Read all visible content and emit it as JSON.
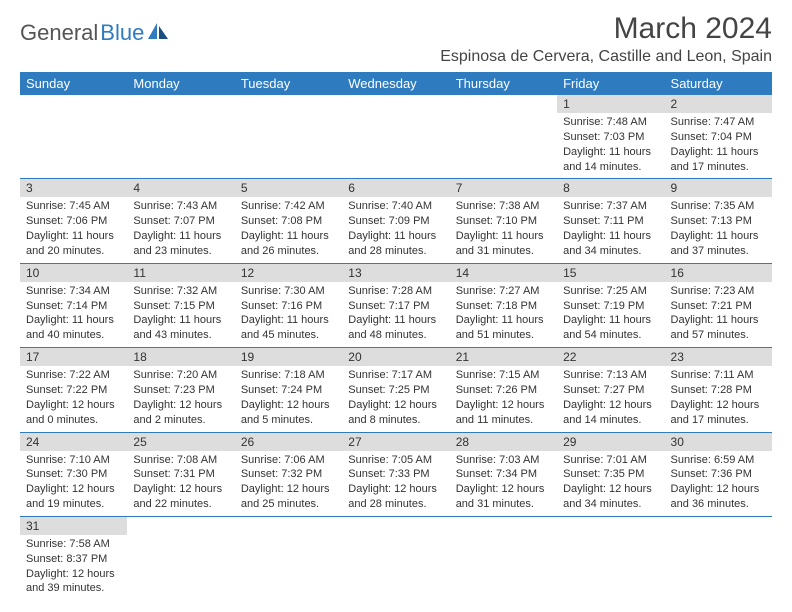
{
  "logo": {
    "general": "General",
    "blue": "Blue"
  },
  "title": "March 2024",
  "location": "Espinosa de Cervera, Castille and Leon, Spain",
  "weekdays": [
    "Sunday",
    "Monday",
    "Tuesday",
    "Wednesday",
    "Thursday",
    "Friday",
    "Saturday"
  ],
  "colors": {
    "header_bg": "#2f7bbf",
    "header_text": "#ffffff",
    "daynum_bg": "#dddddd",
    "border": "#2f7bbf",
    "text": "#333333"
  },
  "fonts": {
    "title_size_pt": 30,
    "location_size_pt": 16,
    "weekday_size_pt": 13,
    "daynum_size_pt": 12,
    "body_size_pt": 11
  },
  "weeks": [
    [
      null,
      null,
      null,
      null,
      null,
      {
        "n": "1",
        "sr": "Sunrise: 7:48 AM",
        "ss": "Sunset: 7:03 PM",
        "d1": "Daylight: 11 hours",
        "d2": "and 14 minutes."
      },
      {
        "n": "2",
        "sr": "Sunrise: 7:47 AM",
        "ss": "Sunset: 7:04 PM",
        "d1": "Daylight: 11 hours",
        "d2": "and 17 minutes."
      }
    ],
    [
      {
        "n": "3",
        "sr": "Sunrise: 7:45 AM",
        "ss": "Sunset: 7:06 PM",
        "d1": "Daylight: 11 hours",
        "d2": "and 20 minutes."
      },
      {
        "n": "4",
        "sr": "Sunrise: 7:43 AM",
        "ss": "Sunset: 7:07 PM",
        "d1": "Daylight: 11 hours",
        "d2": "and 23 minutes."
      },
      {
        "n": "5",
        "sr": "Sunrise: 7:42 AM",
        "ss": "Sunset: 7:08 PM",
        "d1": "Daylight: 11 hours",
        "d2": "and 26 minutes."
      },
      {
        "n": "6",
        "sr": "Sunrise: 7:40 AM",
        "ss": "Sunset: 7:09 PM",
        "d1": "Daylight: 11 hours",
        "d2": "and 28 minutes."
      },
      {
        "n": "7",
        "sr": "Sunrise: 7:38 AM",
        "ss": "Sunset: 7:10 PM",
        "d1": "Daylight: 11 hours",
        "d2": "and 31 minutes."
      },
      {
        "n": "8",
        "sr": "Sunrise: 7:37 AM",
        "ss": "Sunset: 7:11 PM",
        "d1": "Daylight: 11 hours",
        "d2": "and 34 minutes."
      },
      {
        "n": "9",
        "sr": "Sunrise: 7:35 AM",
        "ss": "Sunset: 7:13 PM",
        "d1": "Daylight: 11 hours",
        "d2": "and 37 minutes."
      }
    ],
    [
      {
        "n": "10",
        "sr": "Sunrise: 7:34 AM",
        "ss": "Sunset: 7:14 PM",
        "d1": "Daylight: 11 hours",
        "d2": "and 40 minutes."
      },
      {
        "n": "11",
        "sr": "Sunrise: 7:32 AM",
        "ss": "Sunset: 7:15 PM",
        "d1": "Daylight: 11 hours",
        "d2": "and 43 minutes."
      },
      {
        "n": "12",
        "sr": "Sunrise: 7:30 AM",
        "ss": "Sunset: 7:16 PM",
        "d1": "Daylight: 11 hours",
        "d2": "and 45 minutes."
      },
      {
        "n": "13",
        "sr": "Sunrise: 7:28 AM",
        "ss": "Sunset: 7:17 PM",
        "d1": "Daylight: 11 hours",
        "d2": "and 48 minutes."
      },
      {
        "n": "14",
        "sr": "Sunrise: 7:27 AM",
        "ss": "Sunset: 7:18 PM",
        "d1": "Daylight: 11 hours",
        "d2": "and 51 minutes."
      },
      {
        "n": "15",
        "sr": "Sunrise: 7:25 AM",
        "ss": "Sunset: 7:19 PM",
        "d1": "Daylight: 11 hours",
        "d2": "and 54 minutes."
      },
      {
        "n": "16",
        "sr": "Sunrise: 7:23 AM",
        "ss": "Sunset: 7:21 PM",
        "d1": "Daylight: 11 hours",
        "d2": "and 57 minutes."
      }
    ],
    [
      {
        "n": "17",
        "sr": "Sunrise: 7:22 AM",
        "ss": "Sunset: 7:22 PM",
        "d1": "Daylight: 12 hours",
        "d2": "and 0 minutes."
      },
      {
        "n": "18",
        "sr": "Sunrise: 7:20 AM",
        "ss": "Sunset: 7:23 PM",
        "d1": "Daylight: 12 hours",
        "d2": "and 2 minutes."
      },
      {
        "n": "19",
        "sr": "Sunrise: 7:18 AM",
        "ss": "Sunset: 7:24 PM",
        "d1": "Daylight: 12 hours",
        "d2": "and 5 minutes."
      },
      {
        "n": "20",
        "sr": "Sunrise: 7:17 AM",
        "ss": "Sunset: 7:25 PM",
        "d1": "Daylight: 12 hours",
        "d2": "and 8 minutes."
      },
      {
        "n": "21",
        "sr": "Sunrise: 7:15 AM",
        "ss": "Sunset: 7:26 PM",
        "d1": "Daylight: 12 hours",
        "d2": "and 11 minutes."
      },
      {
        "n": "22",
        "sr": "Sunrise: 7:13 AM",
        "ss": "Sunset: 7:27 PM",
        "d1": "Daylight: 12 hours",
        "d2": "and 14 minutes."
      },
      {
        "n": "23",
        "sr": "Sunrise: 7:11 AM",
        "ss": "Sunset: 7:28 PM",
        "d1": "Daylight: 12 hours",
        "d2": "and 17 minutes."
      }
    ],
    [
      {
        "n": "24",
        "sr": "Sunrise: 7:10 AM",
        "ss": "Sunset: 7:30 PM",
        "d1": "Daylight: 12 hours",
        "d2": "and 19 minutes."
      },
      {
        "n": "25",
        "sr": "Sunrise: 7:08 AM",
        "ss": "Sunset: 7:31 PM",
        "d1": "Daylight: 12 hours",
        "d2": "and 22 minutes."
      },
      {
        "n": "26",
        "sr": "Sunrise: 7:06 AM",
        "ss": "Sunset: 7:32 PM",
        "d1": "Daylight: 12 hours",
        "d2": "and 25 minutes."
      },
      {
        "n": "27",
        "sr": "Sunrise: 7:05 AM",
        "ss": "Sunset: 7:33 PM",
        "d1": "Daylight: 12 hours",
        "d2": "and 28 minutes."
      },
      {
        "n": "28",
        "sr": "Sunrise: 7:03 AM",
        "ss": "Sunset: 7:34 PM",
        "d1": "Daylight: 12 hours",
        "d2": "and 31 minutes."
      },
      {
        "n": "29",
        "sr": "Sunrise: 7:01 AM",
        "ss": "Sunset: 7:35 PM",
        "d1": "Daylight: 12 hours",
        "d2": "and 34 minutes."
      },
      {
        "n": "30",
        "sr": "Sunrise: 6:59 AM",
        "ss": "Sunset: 7:36 PM",
        "d1": "Daylight: 12 hours",
        "d2": "and 36 minutes."
      }
    ],
    [
      {
        "n": "31",
        "sr": "Sunrise: 7:58 AM",
        "ss": "Sunset: 8:37 PM",
        "d1": "Daylight: 12 hours",
        "d2": "and 39 minutes."
      },
      null,
      null,
      null,
      null,
      null,
      null
    ]
  ]
}
